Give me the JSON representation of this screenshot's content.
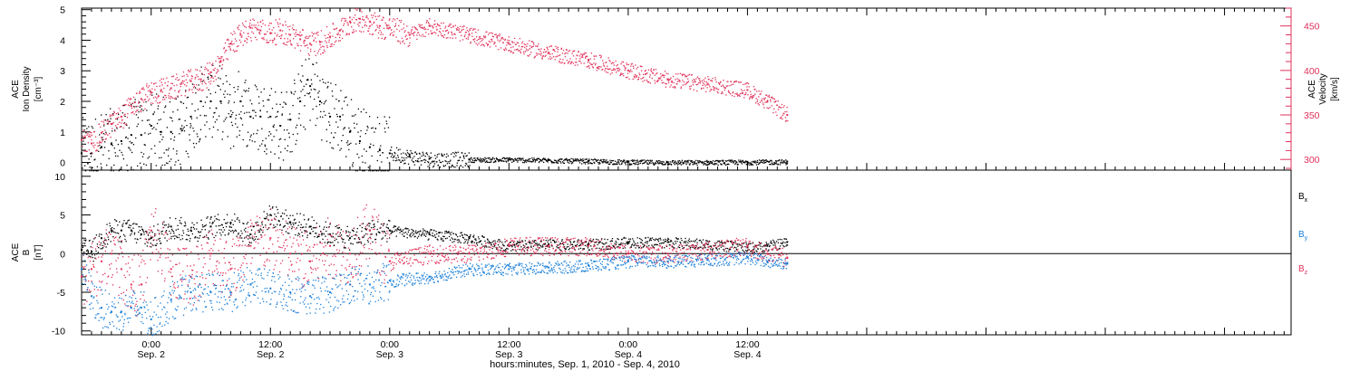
{
  "colors": {
    "density": "#000000",
    "velocity": "#e0325a",
    "bx": "#000000",
    "by": "#1a7fd8",
    "bz": "#e0325a",
    "frame": "#000000"
  },
  "chart_data": [
    {
      "type": "scatter",
      "panel": "top",
      "x_unit": "hours since 2010-09-01 00:00",
      "xlim": [
        17,
        138.7
      ],
      "xticks": [
        {
          "hour": 24,
          "time": "0:00",
          "day": "Sep. 2"
        },
        {
          "hour": 36,
          "time": "12:00",
          "day": "Sep. 2"
        },
        {
          "hour": 48,
          "time": "0:00",
          "day": "Sep. 3"
        },
        {
          "hour": 60,
          "time": "12:00",
          "day": "Sep. 3"
        },
        {
          "hour": 72,
          "time": "0:00",
          "day": "Sep. 4"
        },
        {
          "hour": 84,
          "time": "12:00",
          "day": "Sep. 4"
        }
      ],
      "xlabel": "hours:minutes, Sep.  1, 2010 - Sep.  4, 2010",
      "left_axis": {
        "label_lines": [
          "ACE",
          "Ion Density"
        ],
        "unit": "[cm⁻³]",
        "ylim": [
          -0.25,
          5.05
        ],
        "ticks": [
          "0",
          "1",
          "2",
          "3",
          "4",
          "5"
        ]
      },
      "right_axis": {
        "label_lines": [
          "ACE",
          "Velocity"
        ],
        "unit": "[km/s]",
        "ylim": [
          288,
          470
        ],
        "ticks": [
          "300",
          "350",
          "400",
          "450"
        ]
      },
      "series": [
        {
          "key": "density",
          "axis": "left",
          "x": [
            17.0,
            18.0,
            19.0,
            20.0,
            21.0,
            22.0,
            23.0,
            24.0,
            25.0,
            26.0,
            27.0,
            28.0,
            29.0,
            30.0,
            31.0,
            32.0,
            33.0,
            34.0,
            35.0,
            36.0,
            37.0,
            38.0,
            39.0,
            40.0,
            41.0,
            42.0,
            43.0,
            44.0,
            45.0,
            46.0,
            47.0,
            48.0,
            50.0,
            52.0,
            56.0,
            60.0,
            64.0,
            68.0,
            72.0,
            76.0,
            80.0,
            84.0,
            88.0
          ],
          "y": [
            0.3,
            0.3,
            0.5,
            0.6,
            0.7,
            0.9,
            0.9,
            1.2,
            1.0,
            1.0,
            1.1,
            1.5,
            2.0,
            2.0,
            2.0,
            1.5,
            2.0,
            1.5,
            1.5,
            1.5,
            1.2,
            1.4,
            2.0,
            2.5,
            2.0,
            1.5,
            1.5,
            1.0,
            0.7,
            0.5,
            0.4,
            0.3,
            0.2,
            0.12,
            0.1,
            0.1,
            0.08,
            0.05,
            0.02,
            0.01,
            0.01,
            0.02,
            0.03
          ]
        },
        {
          "key": "velocity",
          "axis": "right",
          "x": [
            17.0,
            18.0,
            19.0,
            20.0,
            21.0,
            22.0,
            23.0,
            24.0,
            25.0,
            26.0,
            27.0,
            28.0,
            29.0,
            30.0,
            31.0,
            32.0,
            33.0,
            34.0,
            35.0,
            36.0,
            37.0,
            38.0,
            39.0,
            40.0,
            41.0,
            42.0,
            43.0,
            44.0,
            45.0,
            46.0,
            47.0,
            48.0,
            50.0,
            52.0,
            56.0,
            60.0,
            64.0,
            68.0,
            72.0,
            76.0,
            80.0,
            84.0,
            86.0,
            88.0
          ],
          "y": [
            322,
            318,
            330,
            340,
            348,
            360,
            368,
            375,
            378,
            380,
            385,
            388,
            390,
            398,
            410,
            430,
            440,
            448,
            445,
            442,
            445,
            440,
            435,
            430,
            432,
            438,
            445,
            455,
            458,
            455,
            450,
            448,
            440,
            450,
            440,
            430,
            420,
            412,
            400,
            390,
            385,
            378,
            365,
            350
          ]
        }
      ]
    },
    {
      "type": "scatter",
      "panel": "bottom",
      "x_unit": "hours since 2010-09-01 00:00",
      "xlim": [
        17,
        138.7
      ],
      "left_axis": {
        "label_lines": [
          "ACE",
          "B"
        ],
        "unit": "[nT]",
        "ylim": [
          -10.5,
          10.8
        ],
        "ticks": [
          "-10",
          "-5",
          "0",
          "5",
          "10"
        ]
      },
      "zero_line": 0,
      "legend": [
        {
          "key": "bx",
          "text": "Bx",
          "base": "B",
          "sub": "x"
        },
        {
          "key": "by",
          "text": "By",
          "base": "B",
          "sub": "y"
        },
        {
          "key": "bz",
          "text": "Bz",
          "base": "B",
          "sub": "z"
        }
      ],
      "series": [
        {
          "key": "bx",
          "x": [
            17.0,
            18.0,
            19.0,
            20.0,
            21.0,
            22.0,
            23.0,
            24.0,
            26.0,
            28.0,
            30.0,
            32.0,
            34.0,
            36.0,
            38.0,
            40.0,
            42.0,
            44.0,
            46.0,
            48.0,
            52.0,
            56.0,
            60.0,
            64.0,
            68.0,
            72.0,
            76.0,
            80.0,
            84.0,
            86.0,
            88.0
          ],
          "y": [
            0.5,
            0.3,
            2.0,
            3.0,
            3.0,
            3.0,
            2.5,
            2.0,
            3.5,
            3.0,
            3.5,
            4.0,
            2.5,
            5.0,
            4.0,
            3.5,
            2.5,
            2.0,
            3.0,
            3.0,
            2.5,
            2.0,
            1.0,
            1.2,
            1.2,
            1.5,
            1.5,
            1.2,
            0.8,
            1.0,
            1.5
          ]
        },
        {
          "key": "by",
          "x": [
            17.0,
            18.0,
            19.0,
            20.0,
            21.0,
            22.0,
            23.0,
            24.0,
            26.0,
            28.0,
            30.0,
            32.0,
            34.0,
            36.0,
            38.0,
            40.0,
            42.0,
            44.0,
            46.0,
            48.0,
            52.0,
            56.0,
            60.0,
            64.0,
            68.0,
            72.0,
            76.0,
            80.0,
            84.0,
            86.0,
            88.0
          ],
          "y": [
            -2.0,
            -5.5,
            -7.0,
            -7.5,
            -7.5,
            -7.0,
            -7.0,
            -8.5,
            -6.0,
            -5.0,
            -5.0,
            -5.0,
            -4.0,
            -4.5,
            -5.0,
            -5.5,
            -5.0,
            -4.0,
            -4.0,
            -3.5,
            -3.0,
            -2.0,
            -2.0,
            -1.8,
            -1.5,
            -1.0,
            -1.0,
            -0.8,
            -0.5,
            -1.0,
            -1.2
          ]
        },
        {
          "key": "bz",
          "x": [
            17.0,
            18.0,
            19.0,
            20.0,
            21.0,
            22.0,
            23.0,
            24.0,
            26.0,
            28.0,
            30.0,
            32.0,
            34.0,
            36.0,
            38.0,
            40.0,
            42.0,
            44.0,
            46.0,
            48.0,
            52.0,
            56.0,
            60.0,
            64.0,
            68.0,
            72.0,
            76.0,
            80.0,
            84.0,
            86.0,
            88.0
          ],
          "y": [
            -3.0,
            -2.0,
            -1.0,
            0.0,
            -2.0,
            -4.0,
            -4.0,
            3.0,
            -2.0,
            -3.0,
            0.0,
            -2.0,
            1.0,
            2.0,
            0.0,
            -1.0,
            1.0,
            0.0,
            3.0,
            -1.0,
            0.0,
            0.0,
            1.0,
            1.0,
            1.0,
            0.0,
            0.0,
            0.5,
            1.0,
            0.0,
            -0.5
          ]
        }
      ]
    }
  ]
}
